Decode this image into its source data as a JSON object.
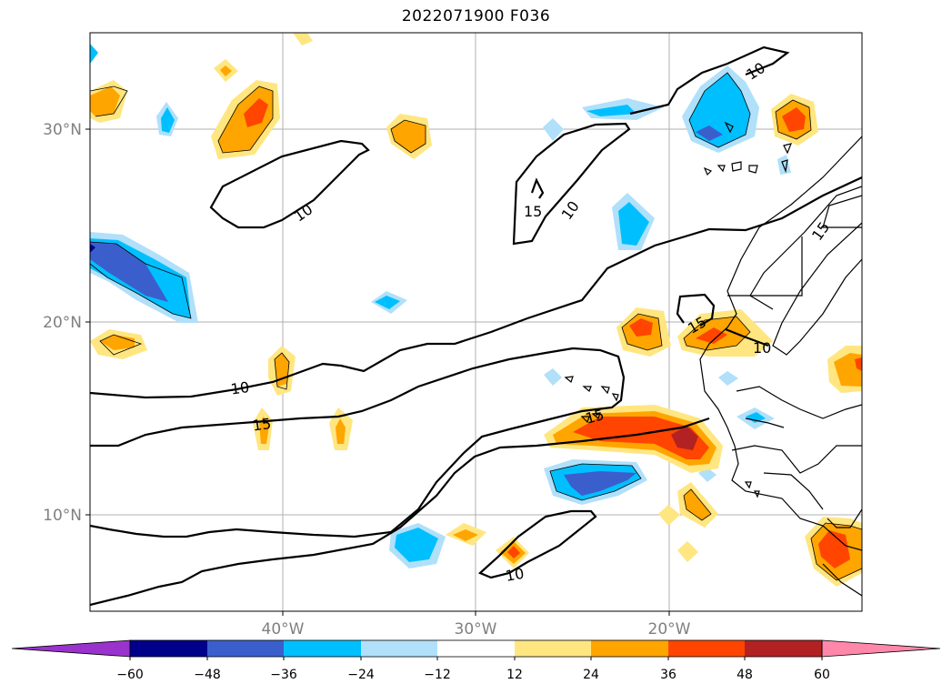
{
  "title": "2022071900 F036",
  "map": {
    "lat_ticks": [
      "30°N",
      "20°N",
      "10°N"
    ],
    "lon_ticks": [
      "40°W",
      "30°W",
      "20°W"
    ],
    "gridlines": true
  },
  "contour_labels": [
    "10",
    "10",
    "10",
    "10",
    "10",
    "10",
    "15",
    "15",
    "15",
    "15",
    "15"
  ],
  "colorbar": {
    "ticks": [
      "−60",
      "−48",
      "−36",
      "−24",
      "−12",
      "12",
      "24",
      "36",
      "48",
      "60"
    ],
    "colors": [
      "#9933cc",
      "#00008b",
      "#3a5fcd",
      "#00bfff",
      "#b0e0fa",
      "#ffffff",
      "#ffe680",
      "#ffa500",
      "#ff4500",
      "#b22222",
      "#ff88aa"
    ],
    "extend": "both"
  }
}
